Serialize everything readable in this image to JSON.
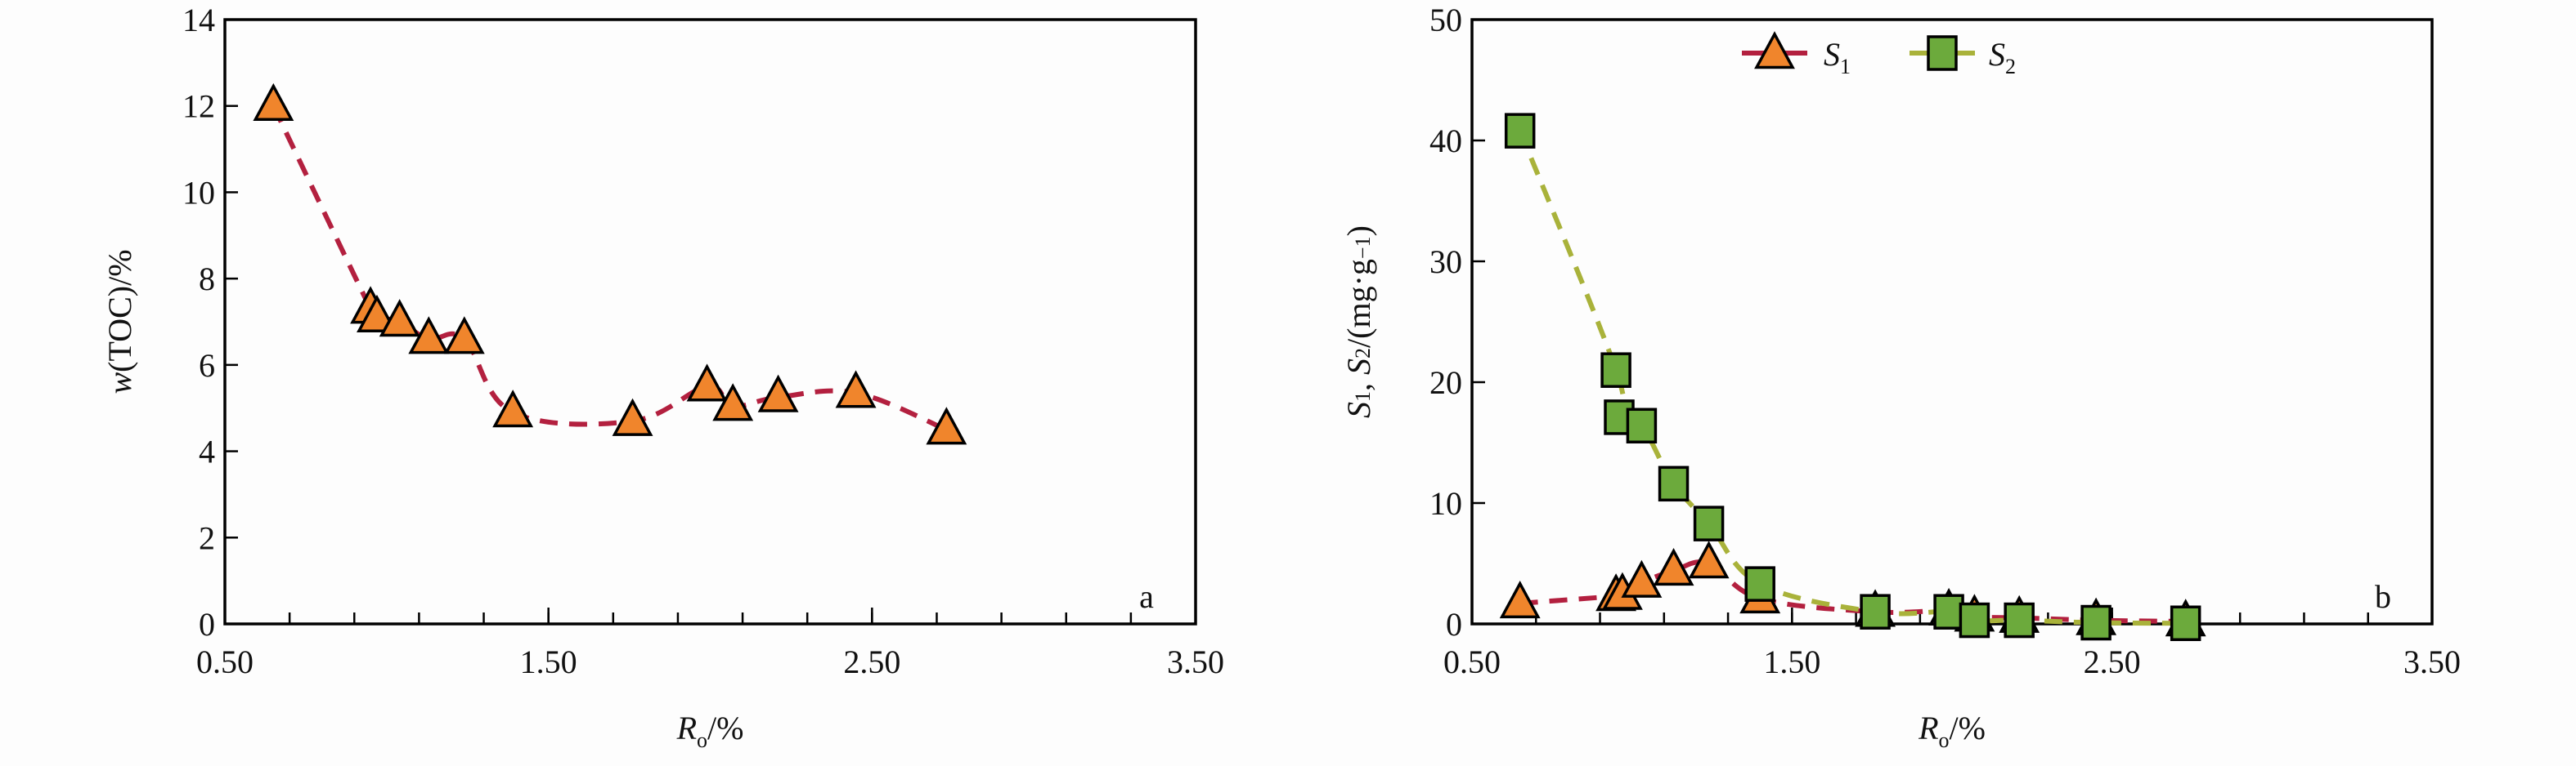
{
  "colors": {
    "triangle_fill": "#f0852c",
    "square_fill": "#6caa3c",
    "s1_line": "#b3203f",
    "s2_line": "#a9b23a",
    "axis": "#000000"
  },
  "chart_data": [
    {
      "type": "scatter",
      "panel_label": "a",
      "xlabel": "Ro/%",
      "xlabel_main": "R",
      "xlabel_sub": "o",
      "xlabel_rest": "/%",
      "ylabel": "w(TOC)/%",
      "xlim": [
        0.5,
        3.5
      ],
      "ylim": [
        0,
        14
      ],
      "xticks": [
        "0.50",
        "1.50",
        "2.50",
        "3.50"
      ],
      "yticks": [
        "0",
        "2",
        "4",
        "6",
        "8",
        "10",
        "12",
        "14"
      ],
      "grid": false,
      "series": [
        {
          "marker": "triangle",
          "line": "dashed smooth",
          "x": [
            0.65,
            0.95,
            0.97,
            1.04,
            1.13,
            1.24,
            1.39,
            1.76,
            1.99,
            2.07,
            2.21,
            2.45,
            2.73
          ],
          "y": [
            12.0,
            7.3,
            7.1,
            7.0,
            6.6,
            6.6,
            4.9,
            4.7,
            5.5,
            5.05,
            5.25,
            5.35,
            4.5
          ]
        }
      ]
    },
    {
      "type": "scatter",
      "panel_label": "b",
      "xlabel": "Ro/%",
      "xlabel_main": "R",
      "xlabel_sub": "o",
      "xlabel_rest": "/%",
      "ylabel": "S1, S2/(mg·g−1)",
      "xlim": [
        0.5,
        3.5
      ],
      "ylim": [
        0,
        50
      ],
      "xticks": [
        "0.50",
        "1.50",
        "2.50",
        "3.50"
      ],
      "yticks": [
        "0",
        "10",
        "20",
        "30",
        "40",
        "50"
      ],
      "grid": false,
      "legend_position": "top-center",
      "series": [
        {
          "name": "S1",
          "marker": "triangle",
          "line": "dashed smooth",
          "x": [
            0.65,
            0.95,
            0.97,
            1.03,
            1.13,
            1.24,
            1.4,
            1.76,
            1.99,
            2.07,
            2.21,
            2.45,
            2.73
          ],
          "y": [
            1.7,
            2.3,
            2.4,
            3.4,
            4.4,
            5.0,
            2.1,
            1.0,
            1.1,
            0.6,
            0.5,
            0.3,
            0.2
          ]
        },
        {
          "name": "S2",
          "marker": "square",
          "line": "dashed smooth",
          "x": [
            0.65,
            0.95,
            0.96,
            1.03,
            1.13,
            1.24,
            1.4,
            1.76,
            1.99,
            2.07,
            2.21,
            2.45,
            2.73
          ],
          "y": [
            40.8,
            21.0,
            17.1,
            16.4,
            11.6,
            8.3,
            3.3,
            1.0,
            1.0,
            0.3,
            0.3,
            0.1,
            0.05
          ]
        }
      ]
    }
  ]
}
